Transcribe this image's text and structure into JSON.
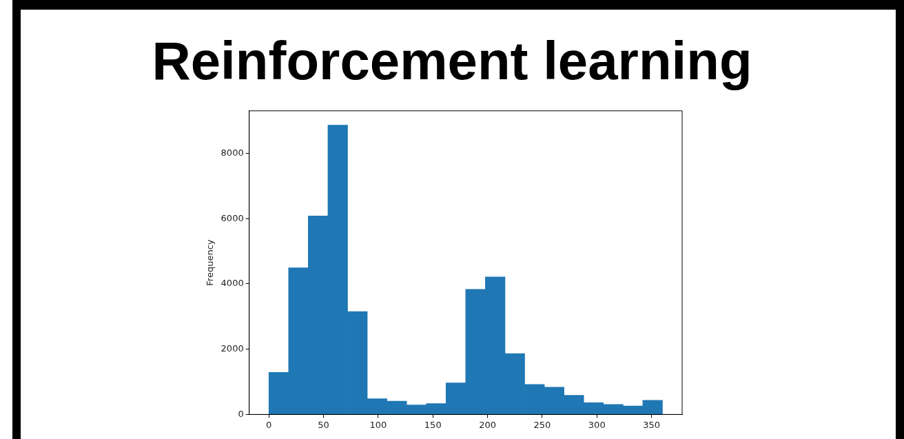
{
  "chart_data": {
    "type": "histogram",
    "title": "Reinforcement learning",
    "ylabel": "Frequency",
    "bins": [
      0,
      18,
      36,
      54,
      72,
      90,
      108,
      126,
      144,
      162,
      180,
      198,
      216,
      234,
      252,
      270,
      288,
      306,
      324,
      342,
      360
    ],
    "values": [
      1290,
      4490,
      6080,
      8860,
      3150,
      480,
      410,
      290,
      335,
      965,
      3830,
      4210,
      1865,
      920,
      835,
      585,
      360,
      305,
      260,
      435
    ],
    "color": "#1f77b4",
    "xlim": [
      -18,
      378
    ],
    "ylim": [
      0,
      9300
    ],
    "xticks": [
      0,
      50,
      100,
      150,
      200,
      250,
      300,
      350
    ],
    "yticks": [
      0,
      2000,
      4000,
      6000,
      8000
    ]
  }
}
